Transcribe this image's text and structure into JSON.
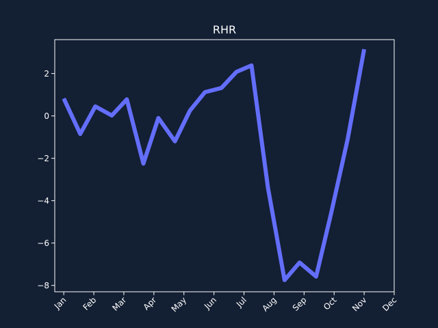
{
  "chart_data": {
    "type": "line",
    "title": "RHR",
    "xlabel": "",
    "ylabel": "",
    "x_tick_labels": [
      "Jan",
      "Feb",
      "Mar",
      "Apr",
      "May",
      "Jun",
      "Jul",
      "Aug",
      "Sep",
      "Oct",
      "Nov",
      "Dec"
    ],
    "y_ticks": [
      -8,
      -6,
      -4,
      -2,
      0,
      2
    ],
    "x_range_months": [
      0.7,
      12.0
    ],
    "ylim": [
      -8.3,
      3.6
    ],
    "grid": false,
    "series": [
      {
        "color": "#636efa",
        "points": [
          {
            "x": 1.0,
            "y": 0.82
          },
          {
            "x": 1.55,
            "y": -0.85
          },
          {
            "x": 2.05,
            "y": 0.45
          },
          {
            "x": 2.6,
            "y": 0.02
          },
          {
            "x": 3.1,
            "y": 0.78
          },
          {
            "x": 3.65,
            "y": -2.25
          },
          {
            "x": 4.15,
            "y": -0.1
          },
          {
            "x": 4.7,
            "y": -1.2
          },
          {
            "x": 5.2,
            "y": 0.25
          },
          {
            "x": 5.7,
            "y": 1.12
          },
          {
            "x": 6.25,
            "y": 1.32
          },
          {
            "x": 6.75,
            "y": 2.08
          },
          {
            "x": 7.25,
            "y": 2.38
          },
          {
            "x": 7.8,
            "y": -3.4
          },
          {
            "x": 8.35,
            "y": -7.75
          },
          {
            "x": 8.85,
            "y": -6.92
          },
          {
            "x": 9.4,
            "y": -7.58
          },
          {
            "x": 9.9,
            "y": -4.6
          },
          {
            "x": 10.45,
            "y": -1.1
          },
          {
            "x": 11.0,
            "y": 3.15
          }
        ]
      }
    ]
  }
}
